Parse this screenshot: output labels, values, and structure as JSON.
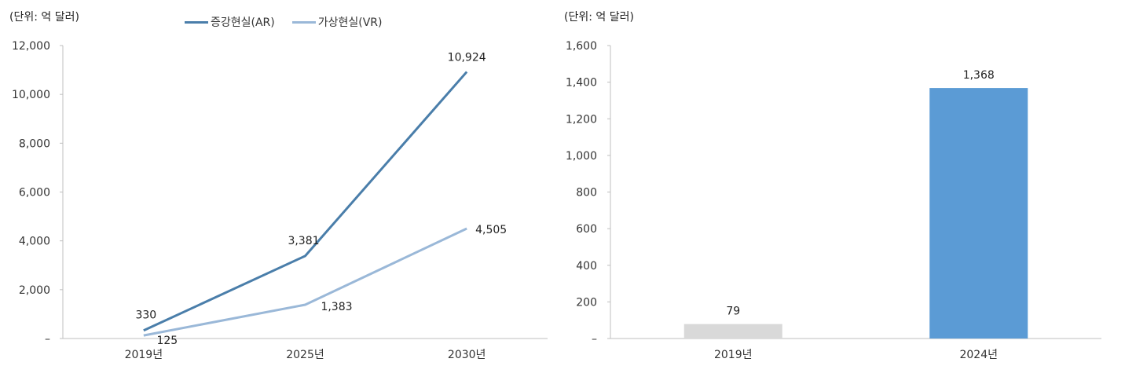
{
  "chart_data": [
    {
      "type": "line",
      "unit_note": "(단위: 억 달러)",
      "categories": [
        "2019년",
        "2025년",
        "2030년"
      ],
      "series": [
        {
          "name": "증강현실(AR)",
          "values": [
            330,
            3381,
            10924
          ],
          "labels": [
            "330",
            "3,381",
            "10,924"
          ],
          "color": "#4a7eaa"
        },
        {
          "name": "가상현실(VR)",
          "values": [
            125,
            1383,
            4505
          ],
          "labels": [
            "125",
            "1,383",
            "4,505"
          ],
          "color": "#9ab8d8"
        }
      ],
      "ylim": [
        0,
        12000
      ],
      "yticks": [
        "–",
        "2,000",
        "4,000",
        "6,000",
        "8,000",
        "10,000",
        "12,000"
      ],
      "legend_position": "top",
      "grid": false
    },
    {
      "type": "bar",
      "unit_note": "(단위: 억 달러)",
      "categories": [
        "2019년",
        "2024년"
      ],
      "values": [
        79,
        1368
      ],
      "labels": [
        "79",
        "1,368"
      ],
      "colors": [
        "#d9d9d9",
        "#5b9bd5"
      ],
      "ylim": [
        0,
        1600
      ],
      "yticks": [
        "–",
        "200",
        "400",
        "600",
        "800",
        "1,000",
        "1,200",
        "1,400",
        "1,600"
      ],
      "grid": false
    }
  ]
}
